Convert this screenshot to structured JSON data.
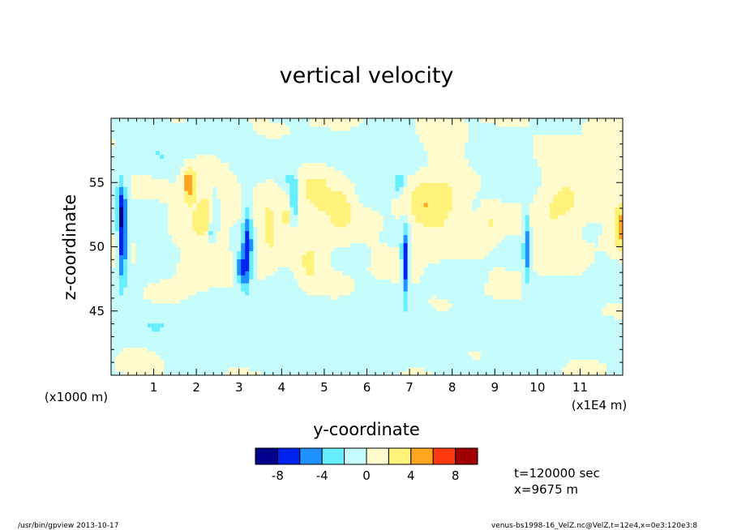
{
  "chart_data": {
    "type": "heatmap",
    "title": "vertical velocity",
    "xlabel": "y-coordinate",
    "ylabel": "z-coordinate",
    "x_unit_note": "(x1E4 m)",
    "y_unit_note": "(x1000 m)",
    "xlim": [
      0,
      12
    ],
    "ylim": [
      40,
      60
    ],
    "x_ticks": [
      1,
      2,
      3,
      4,
      5,
      6,
      7,
      8,
      9,
      10,
      11
    ],
    "y_ticks": [
      45,
      50,
      55
    ],
    "colorbar": {
      "levels": [
        -10,
        -8,
        -6,
        -4,
        -2,
        0,
        2,
        4,
        6,
        8,
        10
      ],
      "tick_labels": [
        "-8",
        "-4",
        "0",
        "4",
        "8"
      ],
      "tick_values": [
        -8,
        -4,
        0,
        4,
        8
      ],
      "colors": [
        "#00008b",
        "#0022ee",
        "#1e90ff",
        "#66eeff",
        "#c6fbfb",
        "#fffbcc",
        "#fff27a",
        "#ffa520",
        "#ff3a10",
        "#a00000"
      ]
    },
    "features": [
      {
        "y": 0.27,
        "z": 50.5,
        "sy": 0.07,
        "sz": 2.4,
        "value": -8
      },
      {
        "y": 0.22,
        "z": 53.5,
        "sy": 0.1,
        "sz": 1.2,
        "value": -4
      },
      {
        "y": 2.45,
        "z": 52.8,
        "sy": 0.06,
        "sz": 1.4,
        "value": -4
      },
      {
        "y": 2.35,
        "z": 51.2,
        "sy": 0.04,
        "sz": 0.6,
        "value": -4
      },
      {
        "y": 1.82,
        "z": 55.0,
        "sy": 0.1,
        "sz": 0.9,
        "value": 5
      },
      {
        "y": 3.2,
        "z": 50.0,
        "sy": 0.08,
        "sz": 2.2,
        "value": -7
      },
      {
        "y": 3.05,
        "z": 48.3,
        "sy": 0.09,
        "sz": 0.9,
        "value": -6
      },
      {
        "y": 4.3,
        "z": 53.5,
        "sy": 0.07,
        "sz": 1.1,
        "value": -4
      },
      {
        "y": 4.2,
        "z": 55.2,
        "sy": 0.15,
        "sz": 0.6,
        "value": -3
      },
      {
        "y": 4.1,
        "z": 52.4,
        "sy": 0.05,
        "sz": 0.35,
        "value": 5
      },
      {
        "y": 6.9,
        "z": 48.8,
        "sy": 0.06,
        "sz": 1.8,
        "value": -8
      },
      {
        "y": 6.75,
        "z": 55.0,
        "sy": 0.08,
        "sz": 0.5,
        "value": -4
      },
      {
        "y": 9.75,
        "z": 50.2,
        "sy": 0.06,
        "sz": 2.3,
        "value": -5
      },
      {
        "y": 11.95,
        "z": 51.7,
        "sy": 0.12,
        "sz": 1.3,
        "value": 5
      },
      {
        "y": 2.2,
        "z": 53.5,
        "sy": 0.35,
        "sz": 2.6,
        "value": 2.6
      },
      {
        "y": 3.7,
        "z": 51.5,
        "sy": 0.2,
        "sz": 2.2,
        "value": 2.2
      },
      {
        "y": 4.8,
        "z": 53.5,
        "sy": 0.4,
        "sz": 2.4,
        "value": 2.4
      },
      {
        "y": 5.45,
        "z": 53.0,
        "sy": 0.2,
        "sz": 1.3,
        "value": 2.2
      },
      {
        "y": 7.8,
        "z": 54.0,
        "sy": 0.4,
        "sz": 2.4,
        "value": 2.6
      },
      {
        "y": 8.9,
        "z": 52.0,
        "sy": 0.2,
        "sz": 1.0,
        "value": 2.2
      },
      {
        "y": 10.5,
        "z": 53.5,
        "sy": 0.4,
        "sz": 2.4,
        "value": 2.5
      },
      {
        "y": 11.6,
        "z": 56.0,
        "sy": 0.3,
        "sz": 1.0,
        "value": 2.2
      },
      {
        "y": 7.3,
        "z": 53.0,
        "sy": 0.25,
        "sz": 1.5,
        "value": 2.2
      },
      {
        "y": 4.65,
        "z": 48.5,
        "sy": 0.2,
        "sz": 1.0,
        "value": 2.2
      },
      {
        "y": 2.0,
        "z": 48.5,
        "sy": 0.35,
        "sz": 1.0,
        "value": 1.4
      },
      {
        "y": 1.2,
        "z": 57.0,
        "sy": 1.0,
        "sz": 1.0,
        "value": -1.3
      },
      {
        "y": 3.6,
        "z": 57.5,
        "sy": 1.2,
        "sz": 0.9,
        "value": -1.2
      },
      {
        "y": 6.0,
        "z": 57.0,
        "sy": 1.0,
        "sz": 1.2,
        "value": -1.2
      },
      {
        "y": 9.3,
        "z": 56.0,
        "sy": 0.8,
        "sz": 1.5,
        "value": -1.3
      },
      {
        "y": 1.0,
        "z": 50.0,
        "sy": 0.3,
        "sz": 2.0,
        "value": -1.0
      },
      {
        "y": 1.0,
        "z": 44.0,
        "sy": 1.5,
        "sz": 1.0,
        "value": -1.2
      },
      {
        "y": 3.0,
        "z": 43.0,
        "sy": 1.2,
        "sz": 1.2,
        "value": -1.2
      },
      {
        "y": 6.5,
        "z": 44.5,
        "sy": 1.0,
        "sz": 1.2,
        "value": -1.2
      },
      {
        "y": 9.8,
        "z": 43.0,
        "sy": 1.2,
        "sz": 1.5,
        "value": -1.2
      },
      {
        "y": 5.5,
        "z": 41.0,
        "sy": 1.5,
        "sz": 0.8,
        "value": -1.1
      },
      {
        "y": 11.3,
        "z": 46.5,
        "sy": 0.6,
        "sz": 1.0,
        "value": -1.1
      },
      {
        "y": 8.3,
        "z": 47.5,
        "sy": 0.4,
        "sz": 0.8,
        "value": -1.0
      },
      {
        "y": 0.9,
        "z": 59.3,
        "sy": 0.7,
        "sz": 0.6,
        "value": -1.2
      },
      {
        "y": 4.5,
        "z": 45.0,
        "sy": 0.8,
        "sz": 0.8,
        "value": -1.0
      }
    ],
    "annotations": [
      "t=120000 sec",
      "x=9675 m"
    ]
  },
  "footer": {
    "left": "/usr/bin/gpview   2013-10-17",
    "right": "venus-bs1998-16_VelZ.nc@VelZ,t=12e4,x=0e3:120e3:8"
  }
}
